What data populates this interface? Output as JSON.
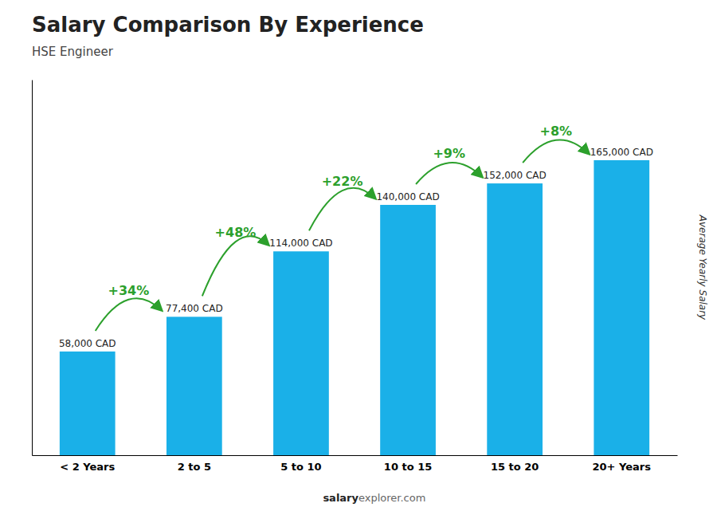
{
  "chart_data": {
    "type": "bar",
    "title": "Salary Comparison By Experience",
    "subtitle": "HSE Engineer",
    "categories": [
      "< 2 Years",
      "2 to 5",
      "5 to 10",
      "10 to 15",
      "15 to 20",
      "20+ Years"
    ],
    "values": [
      58000,
      77400,
      114000,
      140000,
      152000,
      165000
    ],
    "value_labels": [
      "58,000 CAD",
      "77,400 CAD",
      "114,000 CAD",
      "140,000 CAD",
      "152,000 CAD",
      "165,000 CAD"
    ],
    "data_labels": true,
    "annotations": [
      "+34%",
      "+48%",
      "+22%",
      "+9%",
      "+8%"
    ],
    "ylabel": "Average Yearly Salary",
    "footer": [
      "salary",
      "explorer.com"
    ],
    "color": "#1ab0e8",
    "ylim": [
      0,
      210000
    ],
    "yticks": [],
    "tick_labels": "x",
    "grid": false
  }
}
